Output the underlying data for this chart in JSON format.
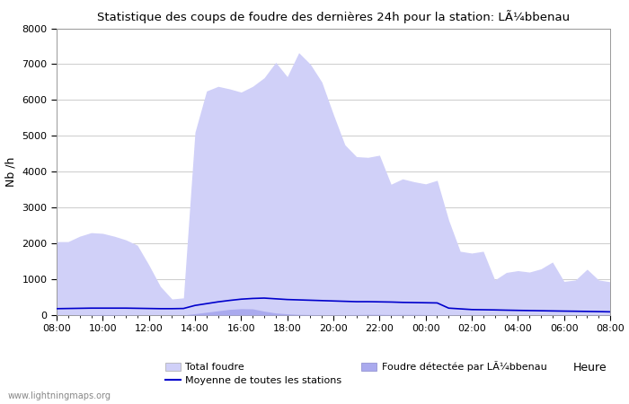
{
  "title": "Statistique des coups de foudre des dernières 24h pour la station: LÃ¼bbenau",
  "ylabel": "Nb /h",
  "xlabel": "Heure",
  "watermark": "www.lightningmaps.org",
  "ylim": [
    0,
    8000
  ],
  "yticks": [
    0,
    1000,
    2000,
    3000,
    4000,
    5000,
    6000,
    7000,
    8000
  ],
  "xtick_labels": [
    "08:00",
    "10:00",
    "12:00",
    "14:00",
    "16:00",
    "18:00",
    "20:00",
    "22:00",
    "00:00",
    "02:00",
    "04:00",
    "06:00",
    "08:00"
  ],
  "legend_total": "Total foudre",
  "legend_local": "Foudre détectée par LÃ¼bbenau",
  "legend_mean": "Moyenne de toutes les stations",
  "color_total_fill": "#d0d0f8",
  "color_local_fill": "#aaaaee",
  "color_mean_line": "#0000cc",
  "background_color": "#ffffff",
  "grid_color": "#cccccc",
  "times": [
    0,
    1,
    2,
    3,
    4,
    5,
    6,
    7,
    8,
    9,
    10,
    11,
    12,
    13,
    14,
    15,
    16,
    17,
    18,
    19,
    20,
    21,
    22,
    23,
    24,
    25,
    26,
    27,
    28,
    29,
    30,
    31,
    32,
    33,
    34,
    35,
    36,
    37,
    38,
    39,
    40,
    41,
    42,
    43,
    44,
    45,
    46,
    47,
    48
  ],
  "total_foudre": [
    2050,
    2050,
    2200,
    2300,
    2280,
    2200,
    2100,
    1950,
    1400,
    800,
    450,
    480,
    5100,
    6250,
    6380,
    6310,
    6220,
    6380,
    6620,
    7050,
    6650,
    7320,
    7000,
    6500,
    5600,
    4750,
    4420,
    4400,
    4460,
    3650,
    3800,
    3720,
    3660,
    3760,
    2650,
    1780,
    1730,
    1780,
    980,
    1190,
    1240,
    1200,
    1290,
    1480,
    940,
    980,
    1280,
    980,
    930
  ],
  "local_foudre": [
    0,
    0,
    5,
    10,
    15,
    10,
    8,
    5,
    3,
    3,
    3,
    5,
    40,
    80,
    120,
    160,
    180,
    175,
    110,
    60,
    35,
    20,
    15,
    10,
    10,
    12,
    15,
    20,
    20,
    15,
    18,
    18,
    15,
    12,
    10,
    6,
    6,
    6,
    3,
    3,
    3,
    3,
    3,
    3,
    3,
    3,
    6,
    8,
    5
  ],
  "mean_line": [
    180,
    185,
    190,
    195,
    195,
    195,
    195,
    190,
    185,
    180,
    180,
    185,
    270,
    320,
    370,
    410,
    445,
    465,
    475,
    455,
    435,
    425,
    415,
    405,
    395,
    385,
    375,
    375,
    370,
    365,
    355,
    350,
    345,
    340,
    195,
    175,
    155,
    150,
    145,
    138,
    132,
    127,
    122,
    117,
    112,
    108,
    103,
    98,
    92
  ]
}
